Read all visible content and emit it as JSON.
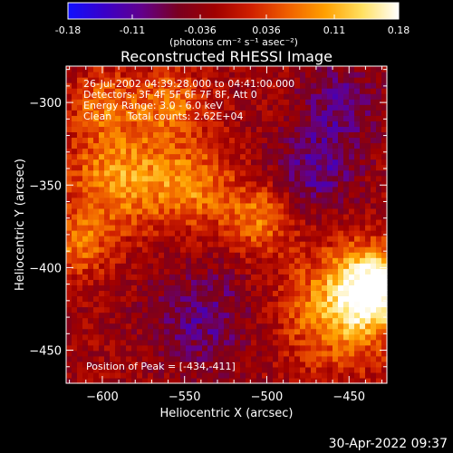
{
  "colorbar": {
    "ticks": [
      "-0.18",
      "-0.11",
      "-0.036",
      "0.036",
      "0.11",
      "0.18"
    ],
    "units": "(photons cm⁻² s⁻¹ asec⁻²)",
    "stops": [
      "#1010ff",
      "#3a00c8",
      "#62008c",
      "#7a0020",
      "#a00000",
      "#d02000",
      "#f06000",
      "#ffa000",
      "#ffe060",
      "#ffffff"
    ]
  },
  "footer": {
    "timestamp": "30-Apr-2022 09:37"
  },
  "chart_data": {
    "type": "heatmap",
    "title": "Reconstructed RHESSI Image",
    "xlabel": "Heliocentric X (arcsec)",
    "ylabel": "Heliocentric Y (arcsec)",
    "xlim": [
      -622,
      -427
    ],
    "ylim": [
      -470,
      -278
    ],
    "x_ticks": [
      -600,
      -550,
      -500,
      -450
    ],
    "y_ticks": [
      -450,
      -400,
      -350,
      -300
    ],
    "value_range": [
      -0.18,
      0.18
    ],
    "annotations": [
      "26-Jul-2002 04:39:28.000 to 04:41:00.000",
      "Detectors: 3F 4F 5F 6F 7F 8F, Att 0",
      "Energy Range: 3.0 - 6.0 keV",
      "Clean     Total counts: 2.62E+04"
    ],
    "peak_label": "Position of Peak = [-434,-411]",
    "sources": [
      {
        "x": -434,
        "y": -411,
        "amp": 0.18,
        "sigma": 16
      },
      {
        "x": -455,
        "y": -425,
        "amp": 0.13,
        "sigma": 24
      },
      {
        "x": -590,
        "y": -345,
        "amp": 0.12,
        "sigma": 22
      },
      {
        "x": -545,
        "y": -350,
        "amp": 0.1,
        "sigma": 18
      },
      {
        "x": -505,
        "y": -370,
        "amp": 0.1,
        "sigma": 14
      },
      {
        "x": -560,
        "y": -300,
        "amp": 0.09,
        "sigma": 16
      },
      {
        "x": -615,
        "y": -385,
        "amp": 0.09,
        "sigma": 14
      },
      {
        "x": -600,
        "y": -300,
        "amp": 0.08,
        "sigma": 14
      },
      {
        "x": -470,
        "y": -340,
        "amp": -0.08,
        "sigma": 18
      },
      {
        "x": -540,
        "y": -430,
        "amp": -0.07,
        "sigma": 22
      },
      {
        "x": -455,
        "y": -300,
        "amp": -0.07,
        "sigma": 16
      }
    ]
  }
}
